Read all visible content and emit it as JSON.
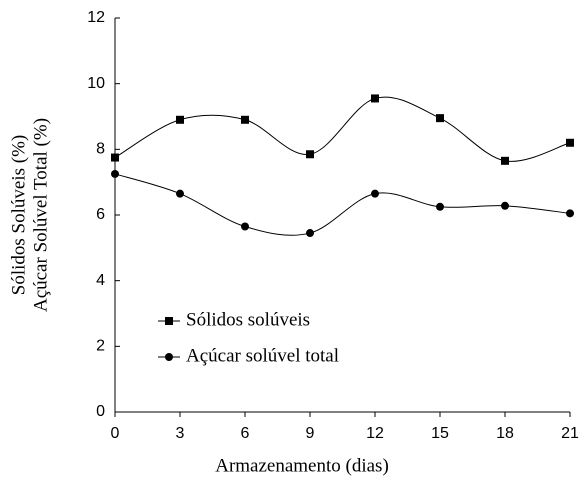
{
  "chart_data": {
    "type": "line",
    "y_label_lines": [
      "Sólidos Solúveis (%)",
      "Açúcar Solúvel Total (%)"
    ],
    "x_label": "Armazenamento (dias)",
    "x": [
      0,
      3,
      6,
      9,
      12,
      15,
      18,
      21
    ],
    "series": [
      {
        "name": "Sólidos solúveis",
        "color": "#000000",
        "marker": "square",
        "values": [
          7.75,
          8.9,
          8.9,
          7.85,
          9.55,
          8.95,
          7.65,
          8.2
        ]
      },
      {
        "name": "Açúcar solúvel total",
        "color": "#000000",
        "marker": "circle",
        "values": [
          7.25,
          6.65,
          5.65,
          5.45,
          6.65,
          6.25,
          6.28,
          6.05
        ]
      }
    ],
    "xlim": [
      0,
      21
    ],
    "xticks": [
      0,
      3,
      6,
      9,
      12,
      15,
      18,
      21
    ],
    "ylim": [
      0,
      12
    ],
    "yticks": [
      0,
      2,
      4,
      6,
      8,
      10,
      12
    ],
    "smooth": true,
    "grid": false
  }
}
